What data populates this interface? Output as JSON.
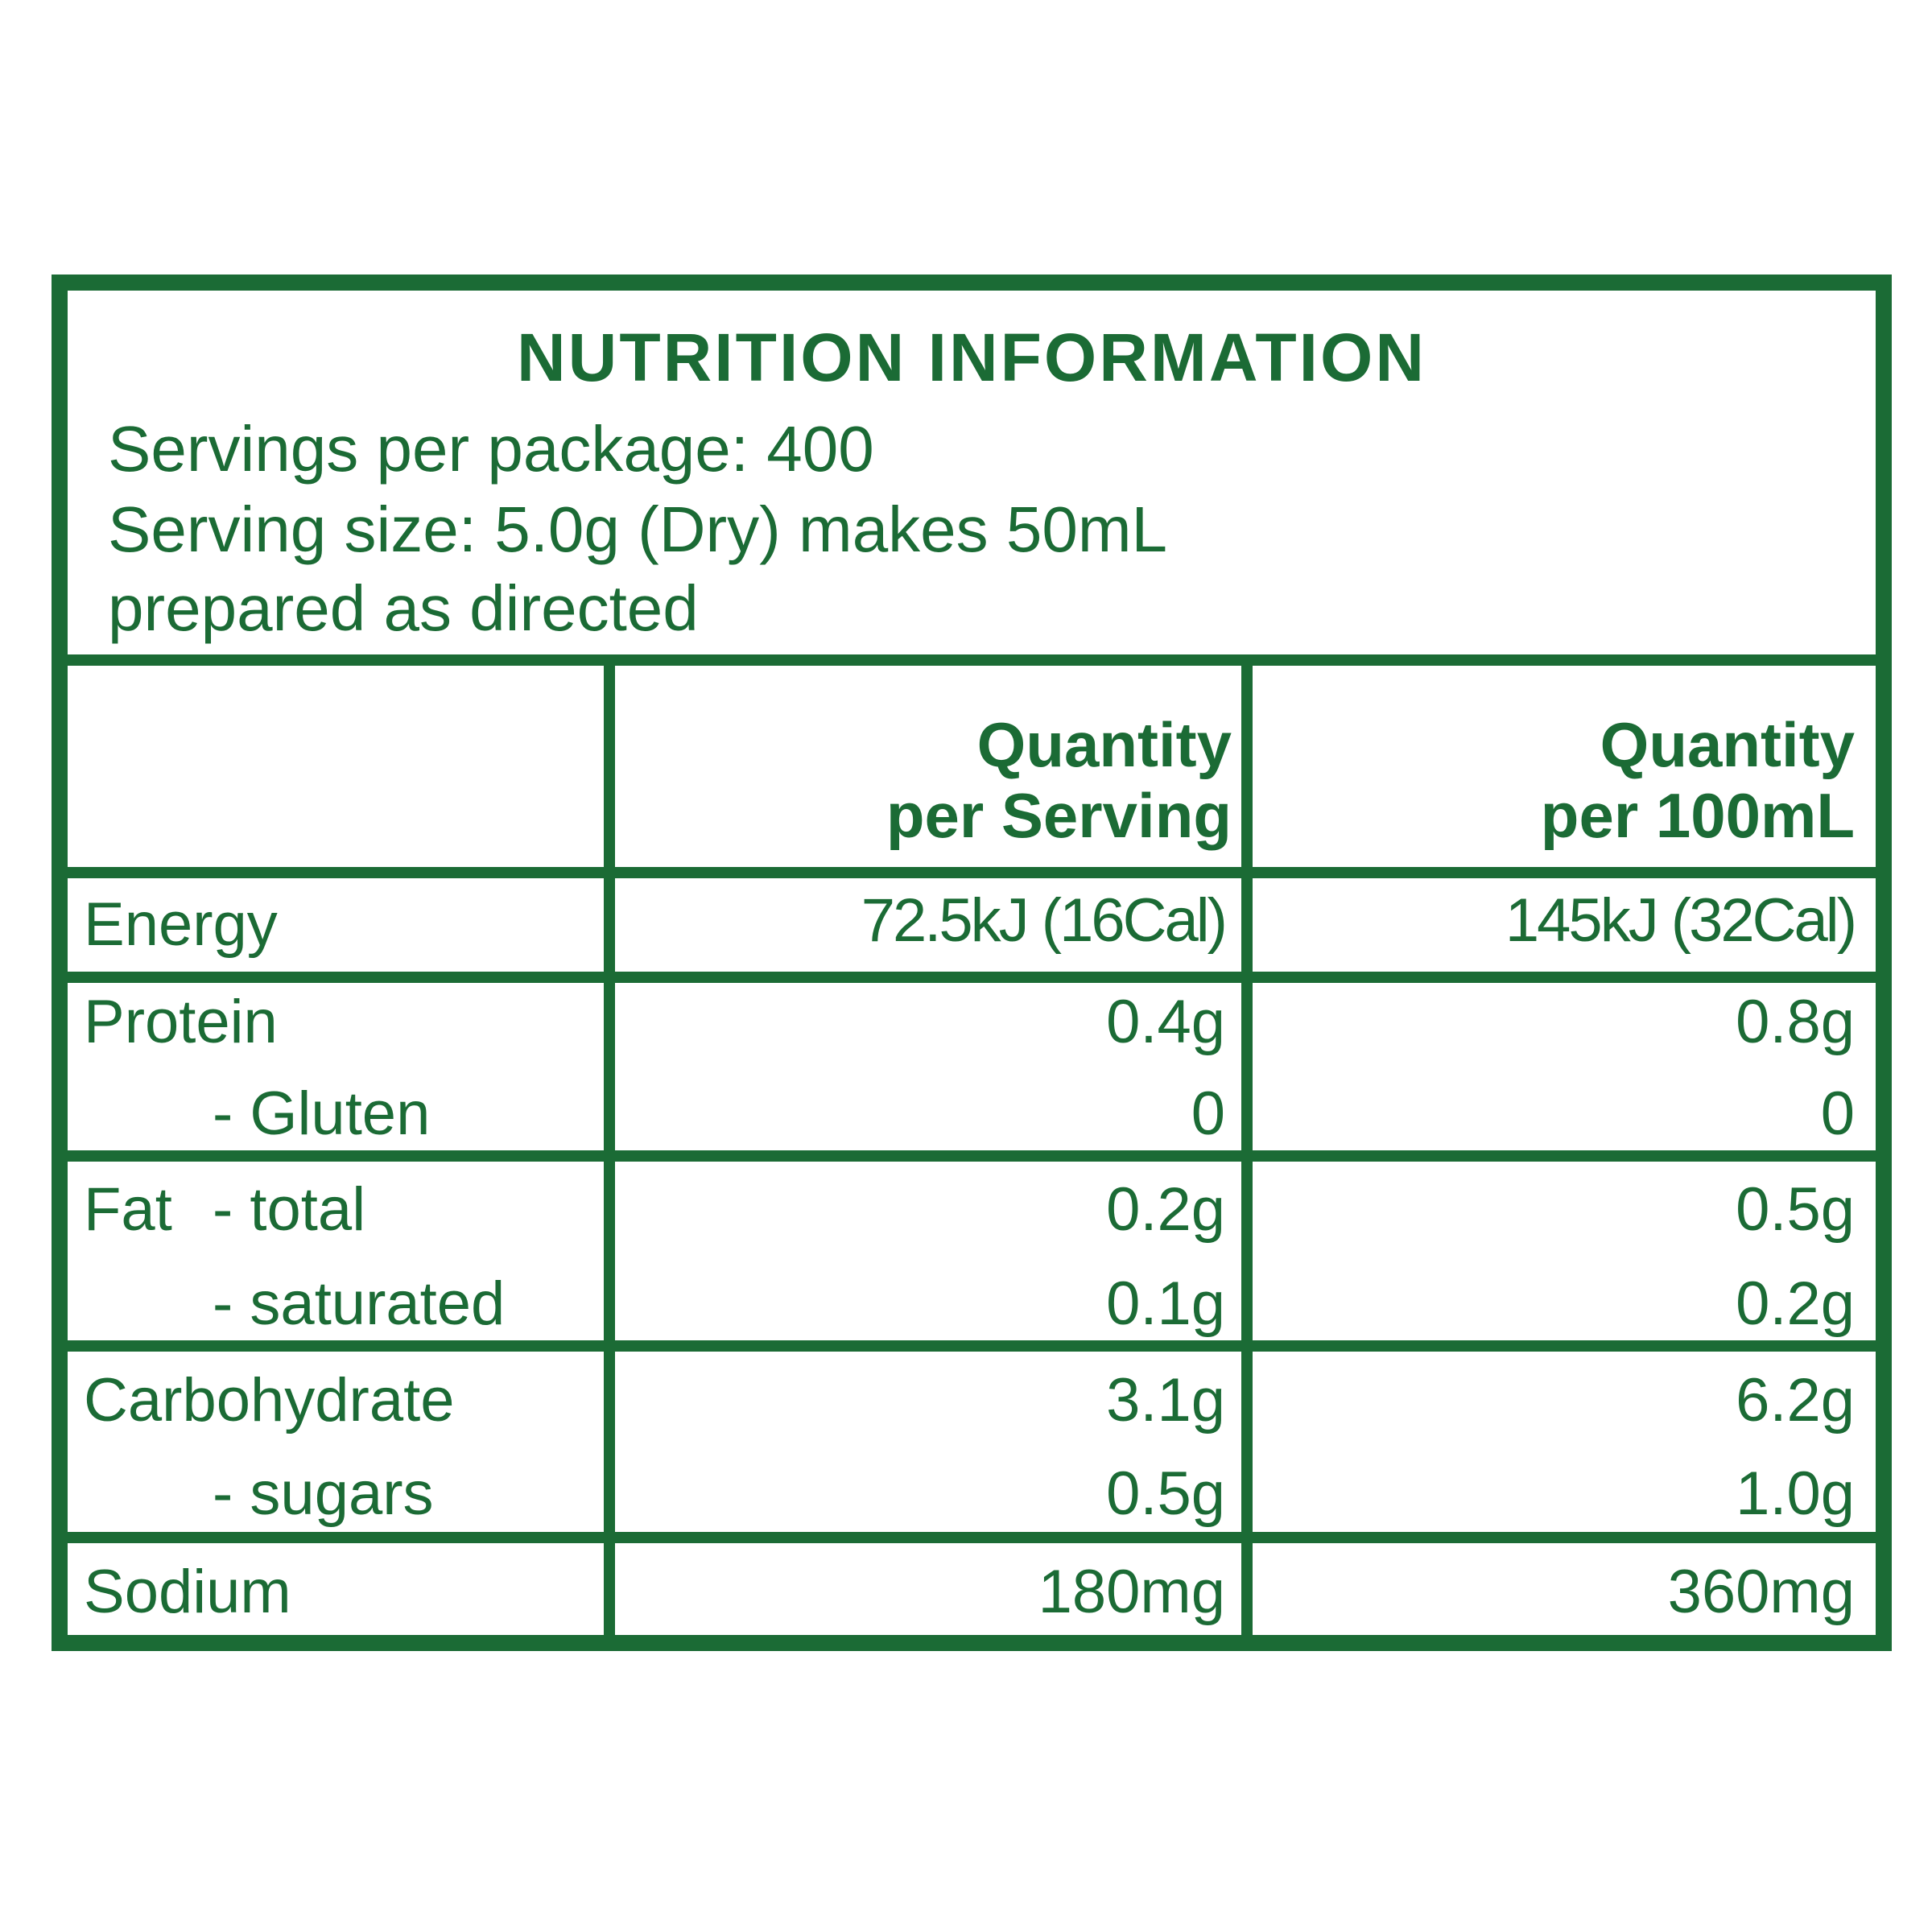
{
  "panel": {
    "title": "NUTRITION INFORMATION",
    "servings_per_package": "Servings per package: 400",
    "serving_size": "Serving size: 5.0g (Dry) makes 50mL",
    "prepared": "prepared as directed"
  },
  "columns": {
    "per_serving_line1": "Quantity",
    "per_serving_line2": "per Serving",
    "per_100_line1": "Quantity",
    "per_100_line2": "per 100mL"
  },
  "rows": {
    "energy": {
      "label": "Energy",
      "per_serving": "72.5kJ (16Cal)",
      "per_100": "145kJ (32Cal)"
    },
    "protein": {
      "label": "Protein",
      "per_serving": "0.4g",
      "per_100": "0.8g"
    },
    "gluten": {
      "label": "- Gluten",
      "per_serving": "0",
      "per_100": "0"
    },
    "fat_total": {
      "label": "Fat",
      "sublabel": "- total",
      "per_serving": "0.2g",
      "per_100": "0.5g"
    },
    "fat_saturated": {
      "label": "- saturated",
      "per_serving": "0.1g",
      "per_100": "0.2g"
    },
    "carbohydrate": {
      "label": "Carbohydrate",
      "per_serving": "3.1g",
      "per_100": "6.2g"
    },
    "sugars": {
      "label": "- sugars",
      "per_serving": "0.5g",
      "per_100": "1.0g"
    },
    "sodium": {
      "label": "Sodium",
      "per_serving": "180mg",
      "per_100": "360mg"
    }
  },
  "colors": {
    "label_green": "#1b6b35",
    "background": "#ffffff"
  }
}
